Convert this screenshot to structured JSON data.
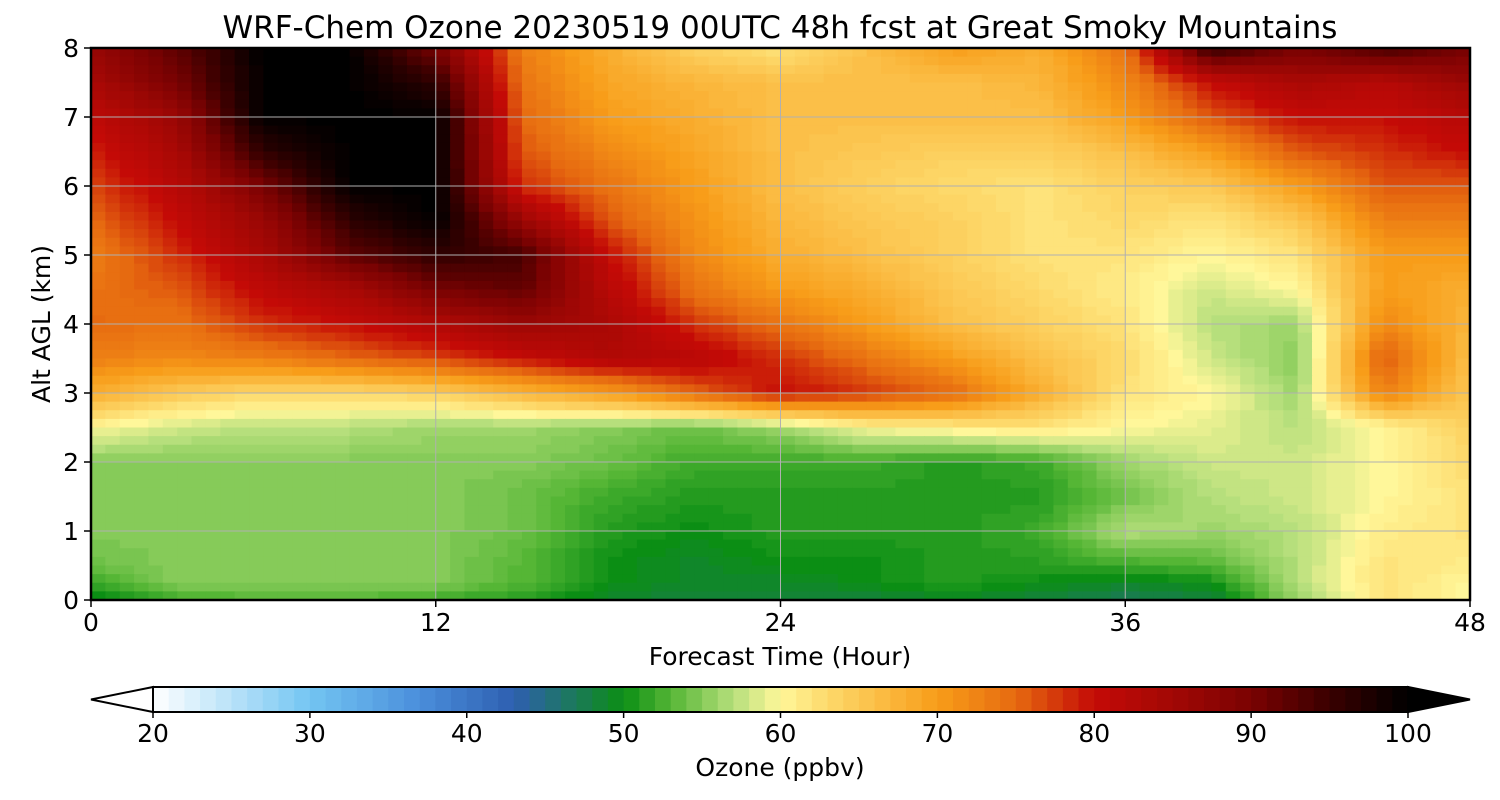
{
  "chart_data": {
    "type": "heatmap",
    "title": "WRF-Chem Ozone  20230519 00UTC 48h fcst at Great Smoky Mountains",
    "xlabel": "Forecast Time (Hour)",
    "ylabel": "Alt AGL (km)",
    "xlim": [
      0,
      48
    ],
    "ylim": [
      0,
      8
    ],
    "xticks": [
      "0",
      "12",
      "24",
      "36",
      "48"
    ],
    "yticks": [
      "0",
      "1",
      "2",
      "3",
      "4",
      "5",
      "6",
      "7",
      "8"
    ],
    "grid": true,
    "x_hours": [
      0,
      3,
      6,
      9,
      12,
      15,
      18,
      21,
      24,
      27,
      30,
      33,
      36,
      39,
      42,
      45,
      48
    ],
    "z_km": [
      0,
      0.25,
      0.5,
      1,
      1.5,
      2,
      2.5,
      3,
      3.5,
      4,
      4.5,
      5,
      5.5,
      6,
      6.5,
      7,
      7.5,
      8
    ],
    "ozone_ppbv": [
      [
        49,
        52,
        53,
        53,
        52,
        51,
        49,
        48,
        48,
        48,
        49,
        48,
        47,
        48,
        56,
        62,
        60
      ],
      [
        52,
        55,
        55,
        55,
        55,
        53,
        50,
        49,
        49,
        50,
        51,
        50,
        49,
        50,
        57,
        62,
        60
      ],
      [
        54,
        55,
        55,
        55,
        55,
        53,
        50,
        49,
        50,
        50,
        51,
        51,
        52,
        53,
        57,
        62,
        61
      ],
      [
        55,
        55,
        55,
        55,
        55,
        54,
        51,
        50,
        51,
        51,
        51,
        52,
        57,
        56,
        57,
        61,
        62
      ],
      [
        55,
        55,
        55,
        55,
        55,
        54,
        52,
        51,
        51,
        51,
        51,
        51,
        54,
        57,
        58,
        60,
        62
      ],
      [
        55,
        55,
        55,
        55,
        55,
        55,
        54,
        52,
        52,
        52,
        51,
        52,
        56,
        58,
        58,
        60,
        63
      ],
      [
        60,
        58,
        57,
        57,
        56,
        56,
        55,
        54,
        56,
        60,
        61,
        62,
        60,
        59,
        57,
        60,
        64
      ],
      [
        68,
        65,
        63,
        63,
        64,
        67,
        70,
        75,
        80,
        78,
        75,
        68,
        62,
        60,
        56,
        73,
        65
      ],
      [
        73,
        72,
        73,
        75,
        77,
        80,
        83,
        82,
        78,
        74,
        70,
        66,
        63,
        58,
        55,
        76,
        66
      ],
      [
        75,
        74,
        78,
        80,
        83,
        86,
        84,
        78,
        74,
        70,
        66,
        64,
        62,
        57,
        56,
        72,
        67
      ],
      [
        74,
        76,
        81,
        84,
        90,
        92,
        82,
        74,
        70,
        68,
        65,
        63,
        61,
        58,
        60,
        70,
        68
      ],
      [
        73,
        78,
        84,
        92,
        96,
        94,
        80,
        72,
        68,
        66,
        64,
        62,
        62,
        60,
        62,
        70,
        70
      ],
      [
        75,
        80,
        86,
        96,
        100,
        86,
        76,
        71,
        67,
        65,
        64,
        62,
        63,
        62,
        65,
        73,
        73
      ],
      [
        77,
        82,
        90,
        100,
        100,
        78,
        74,
        70,
        66,
        64,
        63,
        62,
        64,
        65,
        70,
        76,
        76
      ],
      [
        79,
        84,
        96,
        100,
        100,
        76,
        72,
        69,
        66,
        65,
        64,
        64,
        66,
        70,
        76,
        78,
        80
      ],
      [
        81,
        86,
        100,
        100,
        100,
        75,
        70,
        68,
        66,
        66,
        66,
        66,
        70,
        76,
        80,
        80,
        82
      ],
      [
        84,
        90,
        100,
        100,
        96,
        74,
        69,
        67,
        66,
        66,
        66,
        67,
        72,
        80,
        84,
        82,
        86
      ],
      [
        86,
        92,
        100,
        100,
        90,
        73,
        68,
        64,
        62,
        66,
        70,
        68,
        74,
        96,
        90,
        94,
        90
      ]
    ]
  },
  "colorbar": {
    "label": "Ozone  (ppbv)",
    "ticks": [
      "20",
      "30",
      "40",
      "50",
      "60",
      "70",
      "80",
      "90",
      "100"
    ],
    "min": 20,
    "max": 100,
    "extend": "both",
    "stops": [
      {
        "v": 20,
        "c": "#ffffff"
      },
      {
        "v": 30,
        "c": "#73c5f2"
      },
      {
        "v": 37,
        "c": "#4a8edb"
      },
      {
        "v": 43,
        "c": "#2e5fb0"
      },
      {
        "v": 50,
        "c": "#0b8e14"
      },
      {
        "v": 53,
        "c": "#55b635"
      },
      {
        "v": 57,
        "c": "#b6df7c"
      },
      {
        "v": 60,
        "c": "#fff79a"
      },
      {
        "v": 63,
        "c": "#fdd96b"
      },
      {
        "v": 70,
        "c": "#f89d19"
      },
      {
        "v": 75,
        "c": "#e66a10"
      },
      {
        "v": 80,
        "c": "#c40a06"
      },
      {
        "v": 85,
        "c": "#a20805"
      },
      {
        "v": 90,
        "c": "#7a0202"
      },
      {
        "v": 95,
        "c": "#3a0000"
      },
      {
        "v": 100,
        "c": "#000000"
      }
    ]
  }
}
